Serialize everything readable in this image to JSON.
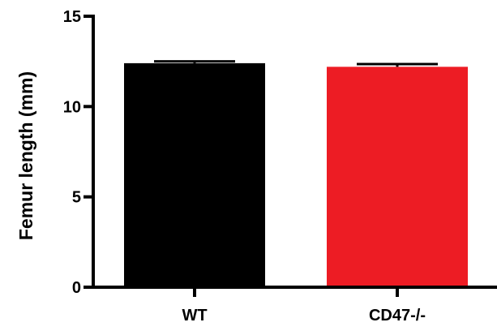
{
  "chart_data": {
    "type": "bar",
    "title": "",
    "xlabel": "",
    "ylabel": "Femur length (mm)",
    "ylim": [
      0,
      15
    ],
    "yticks": [
      0,
      5,
      10,
      15
    ],
    "grid": false,
    "categories": [
      "WT",
      "CD47-/-"
    ],
    "values": [
      12.4,
      12.2
    ],
    "errors": [
      0.1,
      0.15
    ],
    "colors": [
      "#000000",
      "#ed1c24"
    ]
  }
}
